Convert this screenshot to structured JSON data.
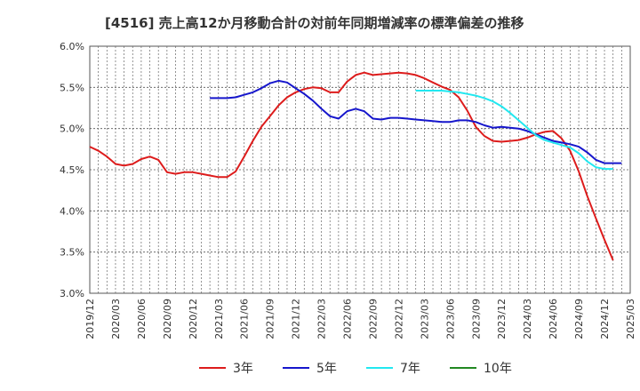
{
  "chart_data": {
    "type": "line",
    "title": "[4516]  売上高12か月移動合計の対前年同期増減率の標準偏差の推移",
    "xlabel": "",
    "ylabel": "",
    "x_ticks": [
      "2019/12",
      "2020/03",
      "2020/06",
      "2020/09",
      "2020/12",
      "2021/03",
      "2021/06",
      "2021/09",
      "2021/12",
      "2022/03",
      "2022/06",
      "2022/09",
      "2022/12",
      "2023/03",
      "2023/06",
      "2023/09",
      "2023/12",
      "2024/03",
      "2024/06",
      "2024/09",
      "2024/12",
      "2025/03"
    ],
    "ylim": [
      3.0,
      6.0
    ],
    "y_ticks": [
      "3.0%",
      "3.5%",
      "4.0%",
      "4.5%",
      "5.0%",
      "5.5%",
      "6.0%"
    ],
    "y_tick_values": [
      3.0,
      3.5,
      4.0,
      4.5,
      5.0,
      5.5,
      6.0
    ],
    "grid": true,
    "legend_position": "bottom",
    "series": [
      {
        "name": "3年",
        "color": "#dd1c1c",
        "start_index": 0,
        "values": [
          4.78,
          4.73,
          4.66,
          4.57,
          4.55,
          4.57,
          4.63,
          4.66,
          4.62,
          4.47,
          4.45,
          4.47,
          4.47,
          4.45,
          4.43,
          4.41,
          4.41,
          4.48,
          4.66,
          4.85,
          5.02,
          5.15,
          5.28,
          5.38,
          5.44,
          5.48,
          5.5,
          5.49,
          5.44,
          5.44,
          5.57,
          5.65,
          5.68,
          5.65,
          5.66,
          5.67,
          5.68,
          5.67,
          5.65,
          5.61,
          5.56,
          5.51,
          5.47,
          5.38,
          5.22,
          5.02,
          4.91,
          4.85,
          4.84,
          4.85,
          4.86,
          4.89,
          4.93,
          4.96,
          4.97,
          4.88,
          4.73,
          4.48,
          4.18,
          3.91,
          3.65,
          3.4
        ]
      },
      {
        "name": "5年",
        "color": "#1616cc",
        "start_index": 14,
        "values": [
          5.37,
          5.37,
          5.37,
          5.38,
          5.41,
          5.44,
          5.49,
          5.55,
          5.58,
          5.56,
          5.49,
          5.42,
          5.34,
          5.24,
          5.15,
          5.12,
          5.21,
          5.24,
          5.21,
          5.12,
          5.11,
          5.13,
          5.13,
          5.12,
          5.11,
          5.1,
          5.09,
          5.08,
          5.08,
          5.1,
          5.1,
          5.08,
          5.04,
          5.01,
          5.02,
          5.01,
          5.0,
          4.97,
          4.93,
          4.89,
          4.85,
          4.83,
          4.81,
          4.78,
          4.71,
          4.62,
          4.58,
          4.58,
          4.58
        ]
      },
      {
        "name": "7年",
        "color": "#22e8f0",
        "start_index": 38,
        "values": [
          5.46,
          5.46,
          5.46,
          5.46,
          5.45,
          5.44,
          5.42,
          5.4,
          5.37,
          5.33,
          5.27,
          5.19,
          5.1,
          5.01,
          4.92,
          4.86,
          4.83,
          4.8,
          4.77,
          4.7,
          4.6,
          4.53,
          4.51,
          4.51
        ]
      },
      {
        "name": "10年",
        "color": "#228822",
        "start_index": 0,
        "values": []
      }
    ]
  }
}
